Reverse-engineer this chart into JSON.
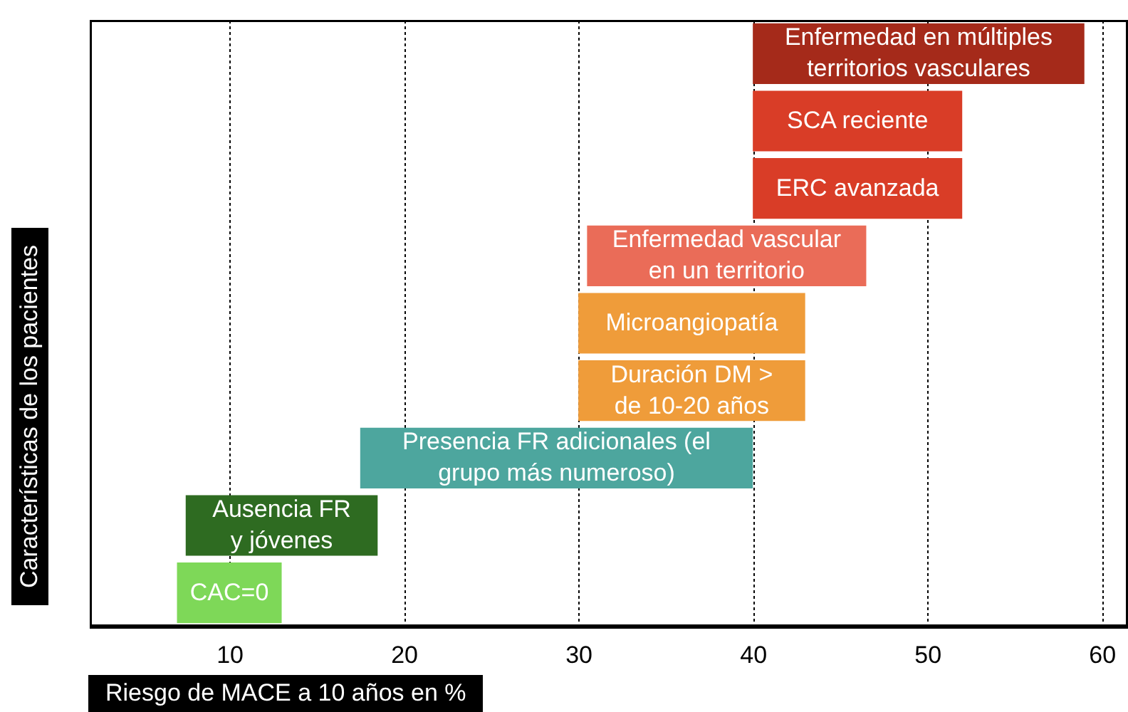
{
  "chart_data": {
    "type": "bar",
    "orientation": "horizontal",
    "categories": [
      "Enfermedad en múltiples\nterritorios vasculares",
      "SCA reciente",
      "ERC avanzada",
      "Enfermedad vascular\nen un territorio",
      "Microangiopatía",
      "Duración DM >\nde 10-20 años",
      "Presencia FR adicionales (el\ngrupo más numeroso)",
      "Ausencia FR\ny jóvenes",
      "CAC=0"
    ],
    "base": [
      40,
      40,
      40,
      30.5,
      30,
      30,
      17.5,
      7.5,
      7
    ],
    "values": [
      19,
      12,
      12,
      16,
      13,
      13,
      22.5,
      11,
      6
    ],
    "colors": [
      "#a52a1a",
      "#d93d27",
      "#d93d27",
      "#ea6c58",
      "#ef9c3a",
      "#ef9c3a",
      "#4da69e",
      "#2e6b21",
      "#7ed858"
    ],
    "xlim": [
      2,
      61.5
    ],
    "xticks": [
      10,
      20,
      30,
      40,
      50,
      60
    ],
    "xlabel": "Riesgo de MACE a 10 años en %",
    "ylabel": "Características de los pacientes",
    "grid": "x",
    "tick_labels": "x"
  }
}
